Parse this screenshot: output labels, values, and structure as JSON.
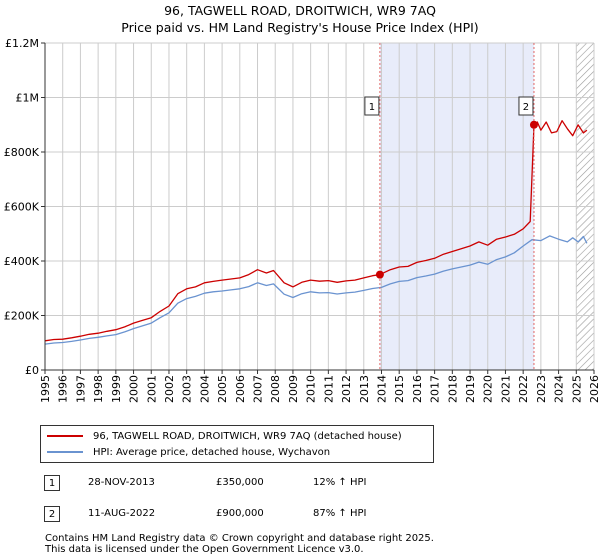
{
  "title_line1": "96, TAGWELL ROAD, DROITWICH, WR9 7AQ",
  "title_line2": "Price paid vs. HM Land Registry's House Price Index (HPI)",
  "colors": {
    "price_line": "#cc0000",
    "hpi_line": "#6a93d0",
    "shade": "#e8ecfa",
    "grid": "#cccccc",
    "marker_vline": "#e06666",
    "hatch": "#9a9a9a"
  },
  "chart_data": {
    "type": "line",
    "title": "96, TAGWELL ROAD, DROITWICH, WR9 7AQ — Price paid vs. HM Land Registry's House Price Index (HPI)",
    "x_range": [
      1995,
      2026
    ],
    "y_range": [
      0,
      1200000
    ],
    "y_ticks": [
      {
        "value": 0,
        "label": "£0"
      },
      {
        "value": 200000,
        "label": "£200K"
      },
      {
        "value": 400000,
        "label": "£400K"
      },
      {
        "value": 600000,
        "label": "£600K"
      },
      {
        "value": 800000,
        "label": "£800K"
      },
      {
        "value": 1000000,
        "label": "£1M"
      },
      {
        "value": 1200000,
        "label": "£1.2M"
      }
    ],
    "x_ticks": [
      "1995",
      "1996",
      "1997",
      "1998",
      "1999",
      "2000",
      "2001",
      "2002",
      "2003",
      "2004",
      "2005",
      "2006",
      "2007",
      "2008",
      "2009",
      "2010",
      "2011",
      "2012",
      "2013",
      "2014",
      "2015",
      "2016",
      "2017",
      "2018",
      "2019",
      "2020",
      "2021",
      "2022",
      "2023",
      "2024",
      "2025",
      "2026"
    ],
    "shaded_range": [
      2013.91,
      2022.61
    ],
    "hatched_from": 2025.0,
    "series": [
      {
        "name": "96, TAGWELL ROAD, DROITWICH, WR9 7AQ (detached house)",
        "x": [
          1995.0,
          1995.5,
          1996.0,
          1996.5,
          1997.0,
          1997.5,
          1998.0,
          1998.5,
          1999.0,
          1999.5,
          2000.0,
          2000.5,
          2001.0,
          2001.5,
          2002.0,
          2002.5,
          2003.0,
          2003.5,
          2004.0,
          2004.5,
          2005.0,
          2005.5,
          2006.0,
          2006.5,
          2007.0,
          2007.5,
          2007.9,
          2008.5,
          2009.0,
          2009.5,
          2010.0,
          2010.5,
          2011.0,
          2011.5,
          2012.0,
          2012.5,
          2013.0,
          2013.5,
          2013.91,
          2014.5,
          2015.0,
          2015.5,
          2016.0,
          2016.5,
          2017.0,
          2017.5,
          2018.0,
          2018.5,
          2019.0,
          2019.5,
          2020.0,
          2020.5,
          2021.0,
          2021.5,
          2022.0,
          2022.4,
          2022.61,
          2022.8,
          2023.0,
          2023.3,
          2023.6,
          2023.9,
          2024.2,
          2024.5,
          2024.8,
          2025.1,
          2025.4,
          2025.6
        ],
        "values": [
          107000,
          112000,
          113000,
          118000,
          124000,
          131000,
          135000,
          142000,
          148000,
          158000,
          172000,
          182000,
          192000,
          215000,
          235000,
          280000,
          298000,
          305000,
          320000,
          325000,
          330000,
          334000,
          338000,
          350000,
          368000,
          356000,
          365000,
          320000,
          305000,
          322000,
          330000,
          326000,
          328000,
          322000,
          327000,
          330000,
          338000,
          346000,
          350000,
          368000,
          378000,
          380000,
          395000,
          402000,
          410000,
          425000,
          435000,
          445000,
          455000,
          470000,
          458000,
          480000,
          488000,
          498000,
          518000,
          545000,
          900000,
          910000,
          880000,
          910000,
          870000,
          875000,
          915000,
          885000,
          860000,
          900000,
          870000,
          880000
        ]
      },
      {
        "name": "HPI: Average price, detached house, Wychavon",
        "x": [
          1995.0,
          1995.5,
          1996.0,
          1996.5,
          1997.0,
          1997.5,
          1998.0,
          1998.5,
          1999.0,
          1999.5,
          2000.0,
          2000.5,
          2001.0,
          2001.5,
          2002.0,
          2002.5,
          2003.0,
          2003.5,
          2004.0,
          2004.5,
          2005.0,
          2005.5,
          2006.0,
          2006.5,
          2007.0,
          2007.5,
          2007.9,
          2008.5,
          2009.0,
          2009.5,
          2010.0,
          2010.5,
          2011.0,
          2011.5,
          2012.0,
          2012.5,
          2013.0,
          2013.5,
          2014.0,
          2014.5,
          2015.0,
          2015.5,
          2016.0,
          2016.5,
          2017.0,
          2017.5,
          2018.0,
          2018.5,
          2019.0,
          2019.5,
          2020.0,
          2020.5,
          2021.0,
          2021.5,
          2022.0,
          2022.5,
          2023.0,
          2023.5,
          2024.0,
          2024.5,
          2024.8,
          2025.1,
          2025.4,
          2025.6
        ],
        "values": [
          95000,
          99000,
          101000,
          105000,
          110000,
          116000,
          120000,
          125000,
          130000,
          140000,
          152000,
          162000,
          172000,
          192000,
          210000,
          245000,
          262000,
          270000,
          282000,
          287000,
          290000,
          294000,
          298000,
          306000,
          320000,
          310000,
          316000,
          278000,
          266000,
          280000,
          287000,
          283000,
          284000,
          279000,
          283000,
          286000,
          292000,
          299000,
          303000,
          316000,
          325000,
          328000,
          339000,
          345000,
          352000,
          363000,
          371000,
          378000,
          385000,
          396000,
          388000,
          405000,
          415000,
          430000,
          455000,
          478000,
          475000,
          492000,
          480000,
          470000,
          485000,
          470000,
          490000,
          465000
        ]
      }
    ],
    "markers": [
      {
        "label": "1",
        "x": 2013.91,
        "value": 350000
      },
      {
        "label": "2",
        "x": 2022.61,
        "value": 900000
      }
    ]
  },
  "legend": {
    "items": [
      {
        "label": "96, TAGWELL ROAD, DROITWICH, WR9 7AQ (detached house)"
      },
      {
        "label": "HPI: Average price, detached house, Wychavon"
      }
    ]
  },
  "transactions": [
    {
      "num": "1",
      "date": "28-NOV-2013",
      "price": "£350,000",
      "hpi": "12% ↑ HPI"
    },
    {
      "num": "2",
      "date": "11-AUG-2022",
      "price": "£900,000",
      "hpi": "87% ↑ HPI"
    }
  ],
  "footer": {
    "line1": "Contains HM Land Registry data © Crown copyright and database right 2025.",
    "line2": "This data is licensed under the Open Government Licence v3.0."
  }
}
